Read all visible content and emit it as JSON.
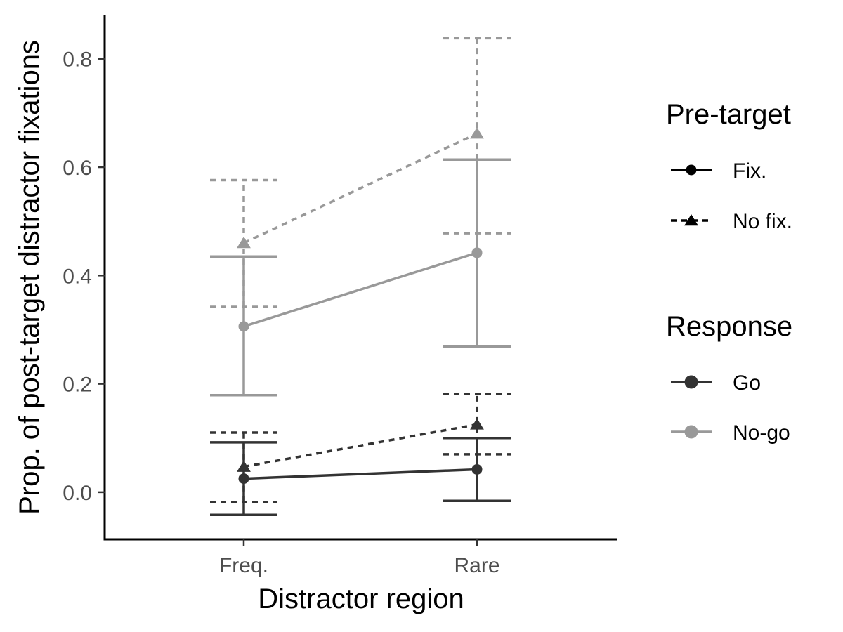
{
  "chart_data": {
    "type": "line",
    "xlabel": "Distractor region",
    "ylabel": "Prop. of post-target distractor fixations",
    "categories": [
      "Freq.",
      "Rare"
    ],
    "ylim": [
      -0.087,
      0.88
    ],
    "yticks": [
      0.0,
      0.2,
      0.4,
      0.6,
      0.8
    ],
    "ytick_labels": [
      "0.0",
      "0.2",
      "0.4",
      "0.6",
      "0.8"
    ],
    "grid": false,
    "legend_placement": "right",
    "legends": [
      {
        "title": "Pre-target",
        "entries": [
          {
            "label": "Fix.",
            "linetype": "solid",
            "shape": "circle"
          },
          {
            "label": "No fix.",
            "linetype": "dashed",
            "shape": "triangle"
          }
        ]
      },
      {
        "title": "Response",
        "entries": [
          {
            "label": "Go",
            "color": "#333333"
          },
          {
            "label": "No-go",
            "color": "#999999"
          }
        ]
      }
    ],
    "series": [
      {
        "pretarget": "Fix.",
        "response": "No-go",
        "color": "#999999",
        "linetype": "solid",
        "shape": "circle",
        "values": [
          0.306,
          0.442
        ],
        "lower": [
          0.179,
          0.269
        ],
        "upper": [
          0.435,
          0.614
        ]
      },
      {
        "pretarget": "No fix.",
        "response": "No-go",
        "color": "#999999",
        "linetype": "dashed",
        "shape": "triangle",
        "values": [
          0.46,
          0.662
        ],
        "lower": [
          0.342,
          0.478
        ],
        "upper": [
          0.576,
          0.838
        ]
      },
      {
        "pretarget": "Fix.",
        "response": "Go",
        "color": "#333333",
        "linetype": "solid",
        "shape": "circle",
        "values": [
          0.025,
          0.042
        ],
        "lower": [
          -0.042,
          -0.016
        ],
        "upper": [
          0.092,
          0.1
        ]
      },
      {
        "pretarget": "No fix.",
        "response": "Go",
        "color": "#333333",
        "linetype": "dashed",
        "shape": "triangle",
        "values": [
          0.047,
          0.125
        ],
        "lower": [
          -0.018,
          0.07
        ],
        "upper": [
          0.11,
          0.181
        ]
      }
    ]
  }
}
